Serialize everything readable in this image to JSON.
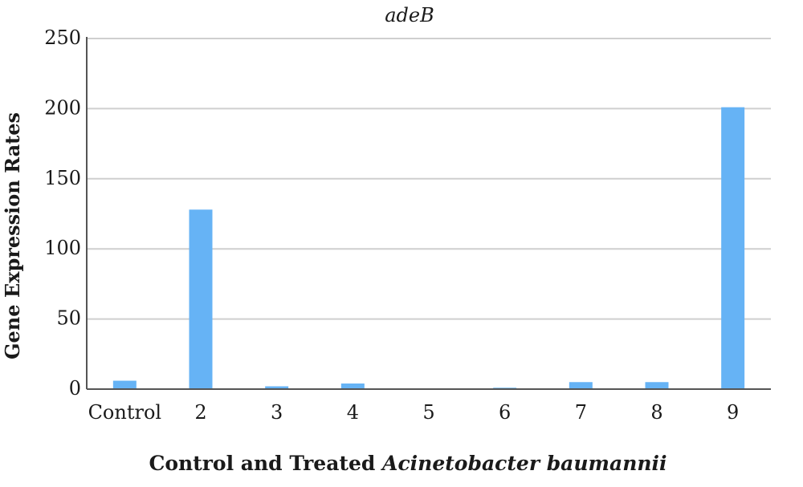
{
  "chart_data": {
    "type": "bar",
    "title": "adeB",
    "ylabel": "Gene Expression Rates",
    "xlabel": {
      "prefix": "Control and Treated ",
      "italic": "Acinetobacter baumannii"
    },
    "categories": [
      "Control",
      "2",
      "3",
      "4",
      "5",
      "6",
      "7",
      "8",
      "9"
    ],
    "values": [
      6,
      128,
      2,
      4,
      0,
      1,
      5,
      5,
      201
    ],
    "ylim": [
      0,
      250
    ],
    "yticks": [
      0,
      50,
      100,
      150,
      200,
      250
    ],
    "grid": true,
    "legend": "none",
    "bar_color": "#66b3f5",
    "grid_color": "#cfcfcf",
    "axis_color": "#555555"
  }
}
